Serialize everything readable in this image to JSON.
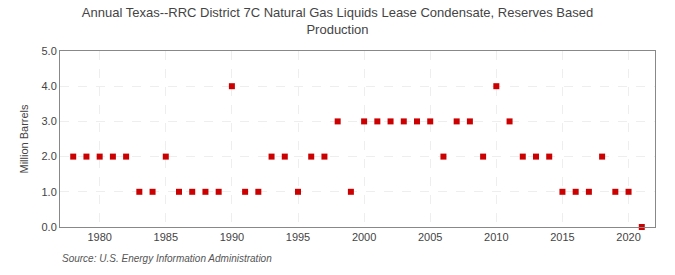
{
  "chart_data": {
    "type": "scatter",
    "title": "Annual Texas--RRC District 7C Natural Gas Liquids Lease Condensate, Reserves Based\nProduction",
    "ylabel": "Million Barrels",
    "annotations": [
      "Source: U.S. Energy Information Administration"
    ],
    "x": [
      1978,
      1979,
      1980,
      1981,
      1982,
      1983,
      1984,
      1985,
      1986,
      1987,
      1988,
      1989,
      1990,
      1991,
      1992,
      1993,
      1994,
      1995,
      1996,
      1997,
      1998,
      1999,
      2000,
      2001,
      2002,
      2003,
      2004,
      2005,
      2006,
      2007,
      2008,
      2009,
      2010,
      2011,
      2012,
      2013,
      2014,
      2015,
      2016,
      2017,
      2018,
      2019,
      2020,
      2021
    ],
    "values": [
      2.0,
      2.0,
      2.0,
      2.0,
      2.0,
      1.0,
      1.0,
      2.0,
      1.0,
      1.0,
      1.0,
      1.0,
      4.0,
      1.0,
      1.0,
      2.0,
      2.0,
      1.0,
      2.0,
      2.0,
      3.0,
      1.0,
      3.0,
      3.0,
      3.0,
      3.0,
      3.0,
      3.0,
      2.0,
      3.0,
      3.0,
      2.0,
      4.0,
      3.0,
      2.0,
      2.0,
      2.0,
      1.0,
      1.0,
      1.0,
      2.0,
      1.0,
      1.0,
      0.0
    ],
    "color": "#cc0000",
    "marker": "square",
    "xlim": [
      1977,
      2022
    ],
    "ylim": [
      0.0,
      5.0
    ],
    "xticks": [
      1980,
      1985,
      1990,
      1995,
      2000,
      2005,
      2010,
      2015,
      2020
    ],
    "yticks": [
      {
        "value": 0.0,
        "label": "0.0"
      },
      {
        "value": 1.0,
        "label": "1.0"
      },
      {
        "value": 2.0,
        "label": "2.0"
      },
      {
        "value": 3.0,
        "label": "3.0"
      },
      {
        "value": 4.0,
        "label": "4.0"
      },
      {
        "value": 5.0,
        "label": "5.0"
      }
    ],
    "grid": true
  }
}
